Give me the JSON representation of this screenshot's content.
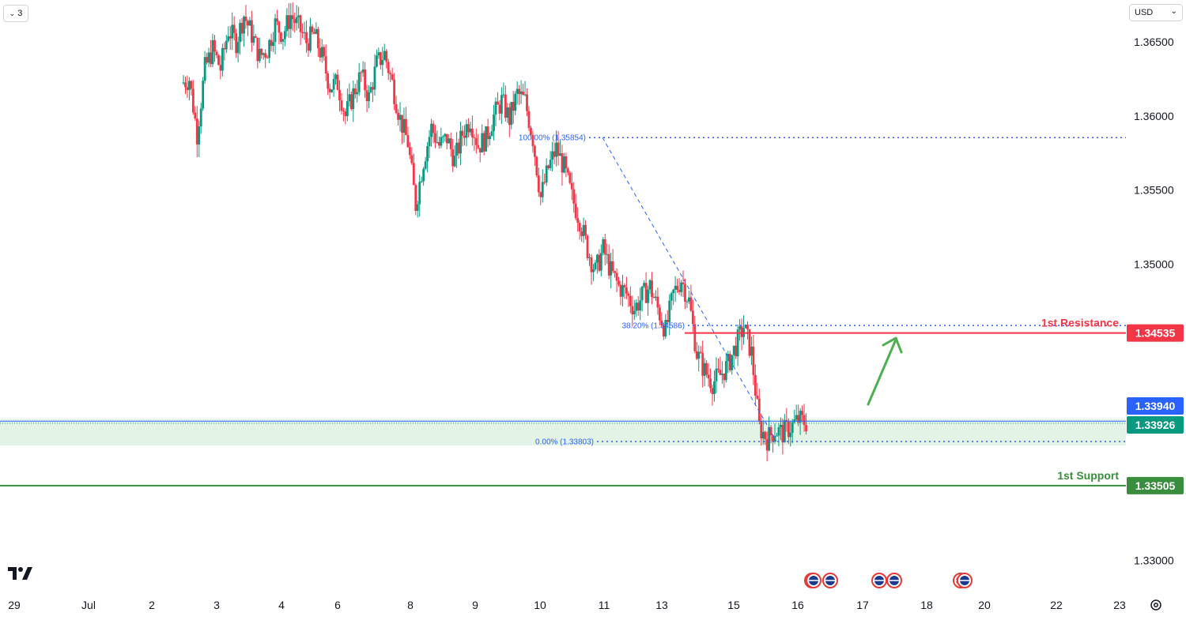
{
  "toolbar": {
    "interval_label": "3",
    "currency_label": "USD"
  },
  "chart_data": {
    "type": "candlestick",
    "y_axis": {
      "ticks": [
        "1.36500",
        "1.36000",
        "1.35500",
        "1.35000",
        "1.33000"
      ],
      "tick_values": [
        1.365,
        1.36,
        1.355,
        1.35,
        1.33
      ],
      "range": [
        1.327,
        1.369
      ]
    },
    "x_axis": {
      "labels": [
        "29",
        "Jul",
        "2",
        "3",
        "4",
        "6",
        "8",
        "9",
        "10",
        "11",
        "13",
        "15",
        "16",
        "17",
        "18",
        "20",
        "22",
        "23"
      ]
    },
    "fibonacci": [
      {
        "label": "100.00% (1.35854)",
        "value": 1.35854
      },
      {
        "label": "38.20% (1.34586)",
        "value": 1.34586
      },
      {
        "label": "0.00% (1.33803)",
        "value": 1.33803
      }
    ],
    "levels": {
      "resistance": {
        "label": "1st Resistance",
        "value": 1.34535,
        "price": "1.34535",
        "color": "#f23645"
      },
      "support": {
        "label": "1st Support",
        "value": 1.33505,
        "price": "1.33505",
        "color": "#388e3c"
      },
      "bid": {
        "value": 1.3394,
        "price": "1.33940",
        "color": "#2962ff"
      },
      "last": {
        "value": 1.33926,
        "price": "1.33926",
        "color": "#089981"
      },
      "zone": [
        1.33776,
        1.33955
      ]
    },
    "price_path": [
      1.3622,
      1.3625,
      1.3588,
      1.3632,
      1.3645,
      1.3632,
      1.3658,
      1.365,
      1.3668,
      1.3655,
      1.364,
      1.3645,
      1.3662,
      1.3655,
      1.3668,
      1.366,
      1.365,
      1.3655,
      1.364,
      1.362,
      1.3622,
      1.36,
      1.3615,
      1.3628,
      1.3612,
      1.3635,
      1.3642,
      1.3622,
      1.3598,
      1.3582,
      1.354,
      1.357,
      1.3592,
      1.358,
      1.3585,
      1.357,
      1.3588,
      1.3598,
      1.358,
      1.3585,
      1.36,
      1.361,
      1.3598,
      1.3615,
      1.361,
      1.3585,
      1.3545,
      1.3565,
      1.3578,
      1.3565,
      1.3545,
      1.353,
      1.351,
      1.3495,
      1.351,
      1.3495,
      1.3485,
      1.348,
      1.347,
      1.3478,
      1.3485,
      1.347,
      1.3455,
      1.348,
      1.349,
      1.3475,
      1.344,
      1.3428,
      1.342,
      1.3425,
      1.3432,
      1.3445,
      1.3458,
      1.344,
      1.339,
      1.3382,
      1.3388,
      1.3386,
      1.339,
      1.3395,
      1.3393
    ],
    "annotation": "upward arrow toward 1st Resistance"
  }
}
